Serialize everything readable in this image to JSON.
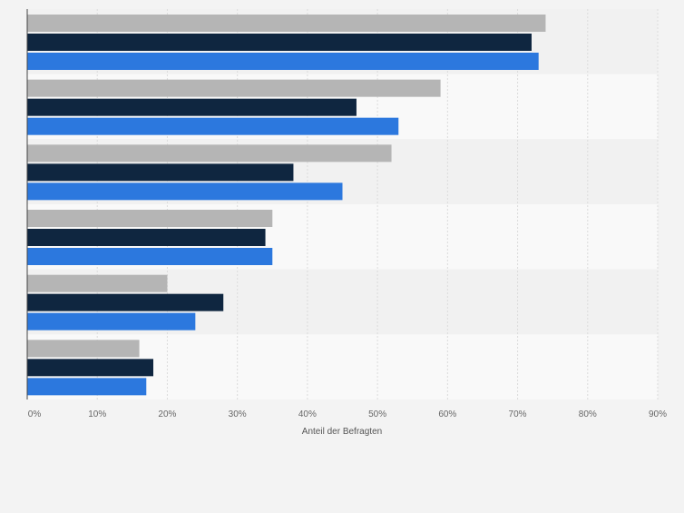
{
  "chart_data": {
    "type": "bar",
    "orientation": "horizontal",
    "title": "",
    "xlabel": "Anteil der Befragten",
    "ylabel": "",
    "xlim": [
      0,
      90
    ],
    "x_ticks": [
      "0%",
      "10%",
      "20%",
      "30%",
      "40%",
      "50%",
      "60%",
      "70%",
      "80%",
      "90%"
    ],
    "grid": true,
    "legend": "none",
    "categories": [
      "",
      "",
      "",
      "",
      "",
      ""
    ],
    "series": [
      {
        "color": "#b5b5b5",
        "values": [
          74,
          59,
          52,
          35,
          20,
          16
        ]
      },
      {
        "color": "#0f2640",
        "values": [
          72,
          47,
          38,
          34,
          28,
          18
        ]
      },
      {
        "color": "#2c78de",
        "values": [
          73,
          53,
          45,
          35,
          24,
          17
        ]
      }
    ]
  },
  "colors": {
    "background": "#f3f3f3",
    "band_dark": "#f1f1f1",
    "band_light": "#f9f9f9",
    "grid": "#dcdcdc",
    "axis": "#444444"
  }
}
